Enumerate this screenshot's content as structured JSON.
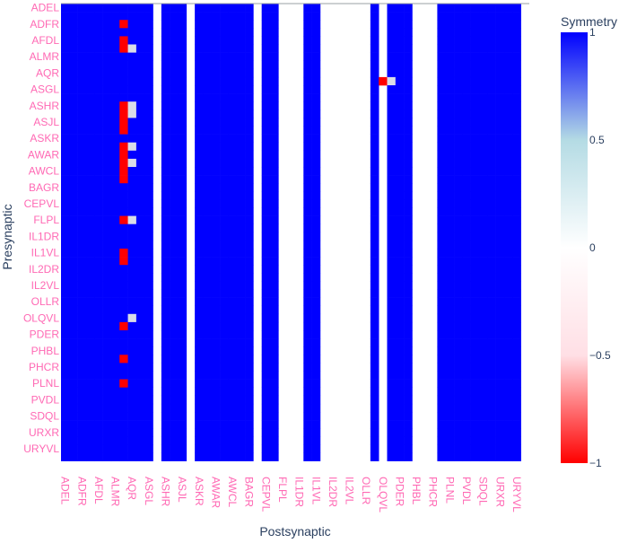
{
  "chart_data": {
    "type": "heatmap",
    "xlabel": "Postsynaptic",
    "ylabel": "Presynaptic",
    "colorbar_title": "Symmetry",
    "zlim": [
      -1,
      1
    ],
    "colorbar_ticks": [
      "1",
      "0.5",
      "0",
      "−0.5",
      "−1"
    ],
    "colorbar_tick_values": [
      1,
      0.5,
      0,
      -0.5,
      -1
    ],
    "colorscale": [
      [
        -1,
        "#ff0000"
      ],
      [
        -0.5,
        "#ffdfe5"
      ],
      [
        0,
        "#ffffff"
      ],
      [
        0.5,
        "#b4dbe4"
      ],
      [
        1,
        "#0000ff"
      ]
    ],
    "tick_color": "#ff69b4",
    "x_tick_labels": [
      "ADEL",
      "ADFR",
      "AFDL",
      "ALMR",
      "AQR",
      "ASGL",
      "ASHR",
      "ASJL",
      "ASKR",
      "AWAR",
      "AWCL",
      "BAGR",
      "CEPVL",
      "FLPL",
      "IL1DR",
      "IL1VL",
      "IL2DR",
      "IL2VL",
      "OLLR",
      "OLQVL",
      "PDER",
      "PHBL",
      "PHCR",
      "PLNL",
      "PVDL",
      "SDQL",
      "URXR",
      "URYVL"
    ],
    "y_tick_labels": [
      "ADEL",
      "ADFR",
      "AFDL",
      "ALMR",
      "AQR",
      "ASGL",
      "ASHR",
      "ASJL",
      "ASKR",
      "AWAR",
      "AWCL",
      "BAGR",
      "CEPVL",
      "FLPL",
      "IL1DR",
      "IL1VL",
      "IL2DR",
      "IL2VL",
      "OLLR",
      "OLQVL",
      "PDER",
      "PHBL",
      "PHCR",
      "PLNL",
      "PVDL",
      "SDQL",
      "URXR",
      "URYVL"
    ],
    "n_cells": 56,
    "column_values": [
      1,
      1,
      1,
      1,
      1,
      1,
      1,
      1,
      1,
      1,
      1,
      0,
      1,
      1,
      1,
      0,
      1,
      1,
      1,
      1,
      1,
      1,
      1,
      0,
      1,
      1,
      0,
      0,
      0,
      1,
      1,
      0,
      0,
      0,
      0,
      0,
      0,
      1,
      0,
      1,
      1,
      1,
      0,
      0,
      0,
      1,
      1,
      1,
      1,
      1,
      1,
      1,
      1,
      1,
      1,
      0
    ],
    "red_cells": [
      [
        2,
        7
      ],
      [
        4,
        7
      ],
      [
        5,
        7
      ],
      [
        12,
        7
      ],
      [
        13,
        7
      ],
      [
        14,
        7
      ],
      [
        15,
        7
      ],
      [
        17,
        7
      ],
      [
        18,
        7
      ],
      [
        19,
        7
      ],
      [
        20,
        7
      ],
      [
        21,
        7
      ],
      [
        26,
        7
      ],
      [
        30,
        7
      ],
      [
        31,
        7
      ],
      [
        39,
        7
      ],
      [
        43,
        7
      ],
      [
        46,
        7
      ],
      [
        9,
        38
      ]
    ],
    "light_cells": [
      [
        5,
        8
      ],
      [
        12,
        8
      ],
      [
        13,
        8
      ],
      [
        17,
        8
      ],
      [
        19,
        8
      ],
      [
        26,
        8
      ],
      [
        38,
        8
      ],
      [
        9,
        39
      ]
    ]
  }
}
